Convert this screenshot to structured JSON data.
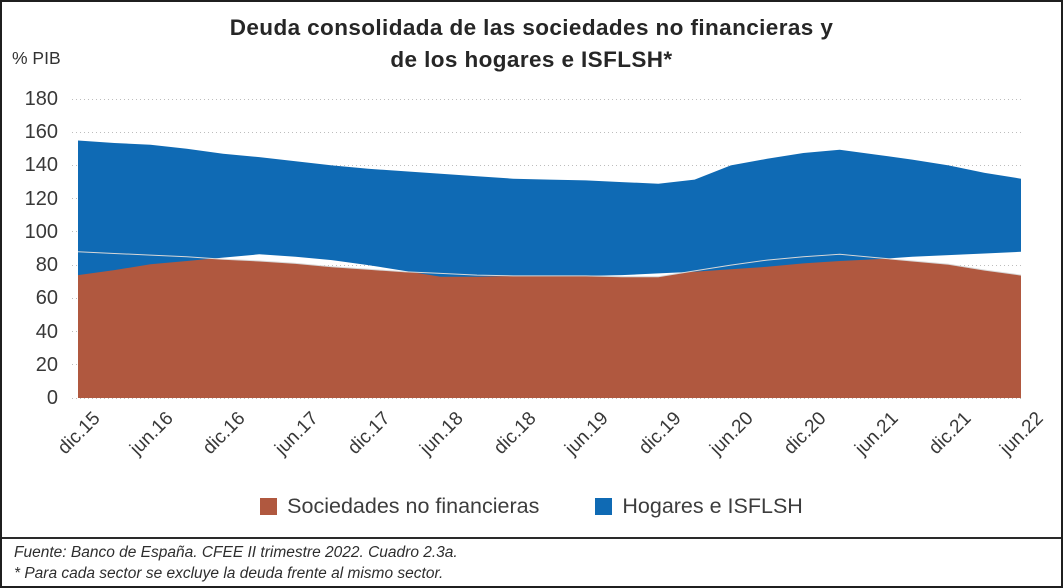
{
  "header": {
    "title_line1": "Deuda consolidada de las sociedades no financieras y",
    "title_line2": "de los hogares e ISFLSH*",
    "y_axis_unit": "% PIB"
  },
  "chart_data": {
    "type": "area",
    "stacked": true,
    "title": "Deuda consolidada de las sociedades no financieras y de los hogares e ISFLSH*",
    "ylabel": "% PIB",
    "ylim": [
      0,
      180
    ],
    "y_ticks": [
      0,
      20,
      40,
      60,
      80,
      100,
      120,
      140,
      160,
      180
    ],
    "grid": "dotted-horizontal",
    "legend_position": "bottom",
    "x": [
      "dic.15",
      "mar.16",
      "jun.16",
      "sep.16",
      "dic.16",
      "mar.17",
      "jun.17",
      "sep.17",
      "dic.17",
      "mar.18",
      "jun.18",
      "sep.18",
      "dic.18",
      "mar.19",
      "jun.19",
      "sep.19",
      "dic.19",
      "mar.20",
      "jun.20",
      "sep.20",
      "dic.20",
      "mar.21",
      "jun.21",
      "sep.21",
      "dic.21",
      "mar.22",
      "jun.22"
    ],
    "x_tick_labels": [
      "dic.15",
      "jun.16",
      "dic.16",
      "jun.17",
      "dic.17",
      "jun.18",
      "dic.18",
      "jun.19",
      "dic.19",
      "jun.20",
      "dic.20",
      "jun.21",
      "dic.21",
      "jun.22"
    ],
    "series": [
      {
        "name": "Sociedades no financieras",
        "color": "#B0583F",
        "values": [
          88,
          87,
          86,
          85,
          83.5,
          82.5,
          81,
          79,
          77.5,
          76,
          75,
          74,
          73.5,
          73.5,
          73.5,
          73,
          73,
          76.5,
          80,
          83,
          85,
          86.5,
          84.5,
          82.5,
          80.5,
          77,
          74
        ]
      },
      {
        "name": "Hogares e ISFLSH",
        "color": "#0F6AB4",
        "values": [
          67,
          66.5,
          66.5,
          65,
          63.5,
          62.5,
          61.5,
          61,
          60.5,
          60.5,
          60,
          59.5,
          58.5,
          58,
          57.5,
          57,
          56,
          55,
          60,
          61,
          62.5,
          63,
          62,
          61,
          59.5,
          58.5,
          58
        ]
      }
    ]
  },
  "legend": {
    "items": [
      {
        "label": "Sociedades no financieras",
        "color": "#B0583F"
      },
      {
        "label": "Hogares e ISFLSH",
        "color": "#0F6AB4"
      }
    ]
  },
  "footer": {
    "source": "Fuente: Banco de España. CFEE II trimestre 2022. Cuadro 2.3a.",
    "note": "* Para cada sector se excluye la deuda frente al mismo sector."
  },
  "colors": {
    "sociedades": "#B0583F",
    "hogares": "#0F6AB4",
    "gridline": "#BDBDBD",
    "text": "#383838",
    "frame": "#1F1F1F"
  }
}
